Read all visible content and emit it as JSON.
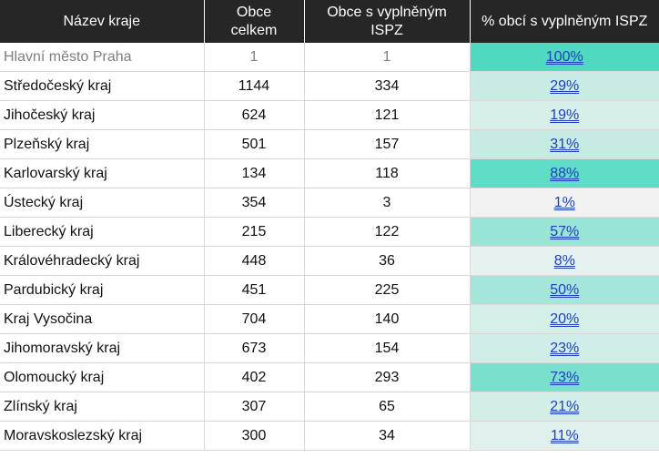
{
  "header": {
    "col1": "Název kraje",
    "col2_line1": "Obce",
    "col2_line2": "celkem",
    "col3_line1": "Obce s vyplněným",
    "col3_line2": "ISPZ",
    "col4": "% obcí s vyplněným ISPZ"
  },
  "rows": [
    {
      "name": "Hlavní město Praha",
      "total": "1",
      "filled": "1",
      "pct": "100%",
      "pct_value": 100,
      "color": "#4fd9c0"
    },
    {
      "name": "Středočeský kraj",
      "total": "1144",
      "filled": "334",
      "pct": "29%",
      "pct_value": 29,
      "color": "#c8ece4"
    },
    {
      "name": "Jihočeský kraj",
      "total": "624",
      "filled": "121",
      "pct": "19%",
      "pct_value": 19,
      "color": "#d6efe9"
    },
    {
      "name": "Plzeňský kraj",
      "total": "501",
      "filled": "157",
      "pct": "31%",
      "pct_value": 31,
      "color": "#c6ebe3"
    },
    {
      "name": "Karlovarský kraj",
      "total": "134",
      "filled": "118",
      "pct": "88%",
      "pct_value": 88,
      "color": "#5fdcc5"
    },
    {
      "name": "Ústecký kraj",
      "total": "354",
      "filled": "3",
      "pct": "1%",
      "pct_value": 1,
      "color": "#f2f2f2"
    },
    {
      "name": "Liberecký kraj",
      "total": "215",
      "filled": "122",
      "pct": "57%",
      "pct_value": 57,
      "color": "#98e5d6"
    },
    {
      "name": "Královéhradecký kraj",
      "total": "448",
      "filled": "36",
      "pct": "8%",
      "pct_value": 8,
      "color": "#e5f2ef"
    },
    {
      "name": "Pardubický kraj",
      "total": "451",
      "filled": "225",
      "pct": "50%",
      "pct_value": 50,
      "color": "#a4e7da"
    },
    {
      "name": "Kraj Vysočina",
      "total": "704",
      "filled": "140",
      "pct": "20%",
      "pct_value": 20,
      "color": "#d4eee8"
    },
    {
      "name": "Jihomoravský kraj",
      "total": "673",
      "filled": "154",
      "pct": "23%",
      "pct_value": 23,
      "color": "#d0ede7"
    },
    {
      "name": "Olomoucký kraj",
      "total": "402",
      "filled": "293",
      "pct": "73%",
      "pct_value": 73,
      "color": "#79e0cd"
    },
    {
      "name": "Zlínský kraj",
      "total": "307",
      "filled": "65",
      "pct": "21%",
      "pct_value": 21,
      "color": "#d2eee7"
    },
    {
      "name": "Moravskoslezský kraj",
      "total": "300",
      "filled": "34",
      "pct": "11%",
      "pct_value": 11,
      "color": "#e0f1ed"
    }
  ]
}
